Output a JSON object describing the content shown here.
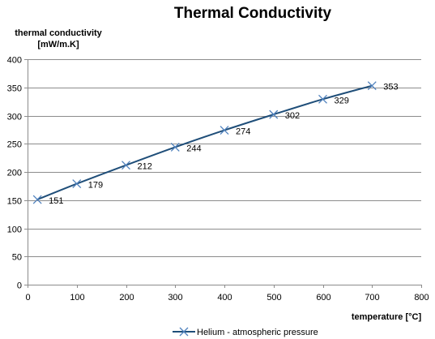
{
  "chart_data": {
    "type": "line",
    "title": "Thermal Conductivity",
    "ylabel_line1": "thermal conductivity",
    "ylabel_line2": "[mW/m.K]",
    "xlabel": "temperature [°C]",
    "xlim": [
      0,
      800
    ],
    "ylim": [
      0,
      400
    ],
    "x_ticks": [
      0,
      100,
      200,
      300,
      400,
      500,
      600,
      700,
      800
    ],
    "y_ticks": [
      0,
      50,
      100,
      150,
      200,
      250,
      300,
      350,
      400
    ],
    "grid": "horizontal",
    "legend_position": "bottom",
    "series": [
      {
        "name": "Helium - atmospheric pressure",
        "color": "#1f4e79",
        "marker": "x",
        "x": [
          20,
          100,
          200,
          300,
          400,
          500,
          600,
          700
        ],
        "y": [
          151,
          179,
          212,
          244,
          274,
          302,
          329,
          353
        ],
        "labels": [
          "151",
          "179",
          "212",
          "244",
          "274",
          "302",
          "329",
          "353"
        ]
      }
    ]
  }
}
